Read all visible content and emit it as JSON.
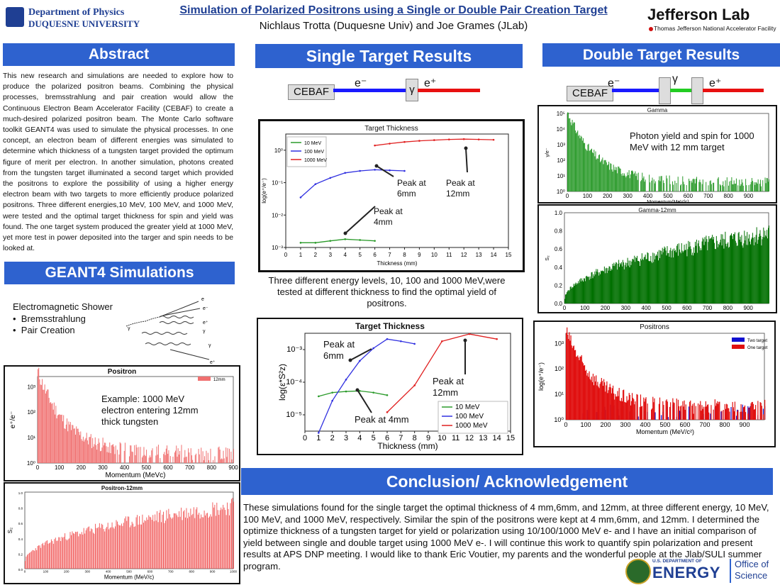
{
  "header": {
    "dept_line1": "Department of Physics",
    "dept_line2": "DUQUESNE UNIVERSITY",
    "title": "Simulation of Polarized Positrons using a Single or Double Pair Creation Target",
    "authors": "Nichlaus Trotta (Duquesne Univ) and Joe Grames (JLab)",
    "lab_name": "Jefferson Lab",
    "lab_sub": "Thomas Jefferson National Accelerator Facility"
  },
  "sections": {
    "abstract": "Abstract",
    "geant4": "GEANT4 Simulations",
    "single": "Single Target Results",
    "double": "Double Target Results",
    "conclusion": "Conclusion/ Acknowledgement"
  },
  "abstract_text": "This new research and simulations are needed to explore how to produce the polarized positron beams. Combining the physical processes, bremsstrahlung and pair creation would allow the Continuous Electron Beam Accelerator Facility (CEBAF) to create a much-desired polarized positron beam. The Monte Carlo software toolkit GEANT4 was used to simulate the physical processes. In one concept, an electron beam of different energies was simulated to determine which thickness of a tungsten target provided the optimum figure of merit per electron.  In another simulation, photons created from the tungsten target illuminated a second target which provided the positrons to explore the possibility of using a higher energy electron beam with two targets to more efficiently produce polarized positrons. Three different energies,10 MeV, 100 MeV, and 1000 MeV, were tested and the optimal target thickness for spin and yield was found. The one target system produced the greater yield at 1000 MeV, yet more test in power deposited into the targer and spin needs to be looked at.",
  "geant4": {
    "shower_title": "Electromagnetic Shower",
    "bullet1": "Bremsstrahlung",
    "bullet2": "Pair Creation",
    "diagram_labels": [
      "e",
      "e⁻",
      "e⁺",
      "γ",
      "γ",
      "γ",
      "e⁺"
    ]
  },
  "beam": {
    "cebaf": "CEBAF",
    "electron": "e⁻",
    "gamma": "γ",
    "positron": "e⁺"
  },
  "caption_single": "Three different energy levels, 10, 100 and 1000 MeV,were tested at different thickness to find the optimal yield of positrons.",
  "annotations": {
    "photon": "Photon yield and spin for 1000 MeV with 12 mm target",
    "example": "Example:  1000 MeV electron entering 12mm thick tungsten",
    "peak6": "Peak at 6mm",
    "peak12": "Peak at 12mm",
    "peak4": "Peak at 4mm",
    "peak4_inline": "Peak at 4mm"
  },
  "colors": {
    "section_blue": "#2e62cf",
    "title_blue": "#1f3f93",
    "green": "#2a9a2a",
    "red": "#e02020",
    "blue": "#3030e0"
  },
  "chart_data": [
    {
      "id": "target-thickness-yield",
      "type": "line",
      "title": "Target Thickness",
      "xlabel": "Thickness (mm)",
      "ylabel": "log(e⁺/e⁻)",
      "xlim": [
        0,
        15
      ],
      "ylim_log": [
        -3,
        0.5
      ],
      "xticks": [
        0,
        1,
        2,
        3,
        4,
        5,
        6,
        7,
        8,
        9,
        10,
        11,
        12,
        13,
        14,
        15
      ],
      "legend_position": "top-left",
      "series": [
        {
          "name": "10 MeV",
          "color": "#2a9a2a",
          "x": [
            1,
            2,
            3,
            4,
            5,
            6
          ],
          "y": [
            0.0014,
            0.0014,
            0.0016,
            0.0018,
            0.0017,
            0.0016
          ]
        },
        {
          "name": "100 MeV",
          "color": "#3030e0",
          "x": [
            1,
            2,
            3,
            4,
            5,
            6,
            7,
            8
          ],
          "y": [
            0.035,
            0.09,
            0.14,
            0.2,
            0.23,
            0.25,
            0.24,
            0.23
          ]
        },
        {
          "name": "1000 MeV",
          "color": "#e02020",
          "x": [
            6,
            7,
            8,
            9,
            10,
            11,
            12,
            13,
            14
          ],
          "y": [
            1.4,
            1.6,
            1.8,
            1.95,
            2.05,
            2.15,
            2.2,
            2.15,
            2.1
          ]
        }
      ]
    },
    {
      "id": "target-thickness-fom",
      "type": "line",
      "title": "Target Thickness",
      "xlabel": "Thickness (mm)",
      "ylabel": "log(ε*S²z)",
      "xlim": [
        0,
        15
      ],
      "ylim_log": [
        -5.5,
        -2.5
      ],
      "xticks": [
        0,
        1,
        2,
        3,
        4,
        5,
        6,
        7,
        8,
        9,
        10,
        11,
        12,
        13,
        14,
        15
      ],
      "legend_position": "bottom-right",
      "series": [
        {
          "name": "10 MeV",
          "color": "#2a9a2a",
          "x": [
            1,
            2,
            3,
            4,
            5,
            6
          ],
          "y": [
            3.7e-05,
            4.8e-05,
            5.2e-05,
            5.4e-05,
            4.8e-05,
            4e-05
          ]
        },
        {
          "name": "100 MeV",
          "color": "#3030e0",
          "x": [
            1,
            2,
            3,
            4,
            5,
            6,
            7,
            8
          ],
          "y": [
            2.8e-06,
            2.7e-05,
            0.00012,
            0.00045,
            0.0011,
            0.0021,
            0.0018,
            0.0015
          ]
        },
        {
          "name": "1000 MeV",
          "color": "#e02020",
          "x": [
            6,
            8,
            10,
            12,
            14
          ],
          "y": [
            1.2e-05,
            8e-05,
            0.0018,
            0.003,
            0.0021
          ]
        }
      ]
    },
    {
      "id": "gamma-yield",
      "type": "bar",
      "title": "Gamma",
      "xlabel": "Momentum(MeV/c)",
      "ylabel": "γ/e⁻",
      "xlim": [
        0,
        1000
      ],
      "ylim_log": [
        0,
        5
      ],
      "xticks": [
        0,
        100,
        200,
        300,
        400,
        500,
        600,
        700,
        800,
        900
      ],
      "ytick_labels": [
        "10⁰",
        "10¹",
        "10²",
        "10³",
        "10⁴",
        "10⁵"
      ],
      "series": [
        {
          "name": "",
          "color": "#2a9a2a",
          "shape": "exponential-decay",
          "y_start_log": 4.8,
          "y_end_log": 0.3
        }
      ]
    },
    {
      "id": "gamma-12mm-spin",
      "type": "bar",
      "title": "Gamma-12mm",
      "xlabel": "",
      "ylabel": "S₂",
      "xlim": [
        0,
        1000
      ],
      "ylim": [
        0,
        1.0
      ],
      "xticks": [
        0,
        100,
        200,
        300,
        400,
        500,
        600,
        700,
        800,
        900
      ],
      "yticks": [
        0.0,
        0.2,
        0.4,
        0.6,
        0.8,
        1.0
      ],
      "series": [
        {
          "name": "",
          "color": "#007000",
          "shape": "rising",
          "y_start": 0.05,
          "y_end": 0.85
        }
      ]
    },
    {
      "id": "positrons-compare",
      "type": "bar",
      "title": "Positrons",
      "xlabel": "Momentum (MeV/c²)",
      "ylabel": "log(e⁺/e⁻)",
      "xlim": [
        0,
        1000
      ],
      "ylim_log": [
        0,
        3.4
      ],
      "xticks": [
        0,
        100,
        200,
        300,
        400,
        500,
        600,
        700,
        800,
        900
      ],
      "ytick_labels": [
        "10⁰",
        "10¹",
        "10²",
        "10³"
      ],
      "legend_position": "top-right",
      "series": [
        {
          "name": "Two target",
          "color": "#1010d0",
          "shape": "sparse",
          "y_start_log": 0.6,
          "y_end_log": 0.1
        },
        {
          "name": "One target",
          "color": "#e01010",
          "shape": "exponential-decay",
          "y_start_log": 3.2,
          "y_end_log": 0.2
        }
      ]
    },
    {
      "id": "positron-yield",
      "type": "bar",
      "title": "Positron",
      "xlabel": "Momentum (MeVc)",
      "ylabel": "e⁺/e⁻",
      "xlim": [
        0,
        900
      ],
      "ylim_log": [
        0,
        3.4
      ],
      "xticks": [
        0,
        100,
        200,
        300,
        400,
        500,
        600,
        700,
        800,
        900
      ],
      "ytick_labels": [
        "10⁰",
        "10¹",
        "10²",
        "10³"
      ],
      "legend_position": "top-right",
      "series": [
        {
          "name": "12mm",
          "color": "#f07070",
          "shape": "exponential-decay",
          "y_start_log": 3.3,
          "y_end_log": 0.1
        }
      ]
    },
    {
      "id": "positron-12mm-spin",
      "type": "bar",
      "title": "Positron-12mm",
      "xlabel": "Momentum (MeV/c)",
      "ylabel": "S₂",
      "xlim": [
        0,
        1000
      ],
      "ylim": [
        0,
        1.0
      ],
      "xticks": [
        0,
        100,
        200,
        300,
        400,
        500,
        600,
        700,
        800,
        900,
        1000
      ],
      "yticks": [
        0.0,
        0.2,
        0.4,
        0.6,
        0.8,
        1.0
      ],
      "series": [
        {
          "name": "",
          "color": "#f05050",
          "shape": "rising",
          "y_start": 0.1,
          "y_end": 0.9
        }
      ]
    }
  ],
  "conclusion_text": "These simulations found for the single target the optimal thickness of 4 mm,6mm, and 12mm,  at three different energy, 10 MeV, 100 MeV, and 1000 MeV, respectively. Similar the spin of the positrons were kept at 4 mm,6mm, and 12mm.  I determined the optimize thickness of a tungsten target for yield or polarization using 10/100/1000 MeV e- and I have an initial comparison of yield between single and double target using 1000 MeV e-.  I will continue this work to quantify spin polarization and present results at APS DNP meeting.  I would like to thank Eric Voutier, my parents and the wonderful people at the Jlab/SULI summer program.",
  "doe": {
    "line1": "U.S. DEPARTMENT OF",
    "line2": "ENERGY",
    "office1": "Office of",
    "office2": "Science"
  }
}
